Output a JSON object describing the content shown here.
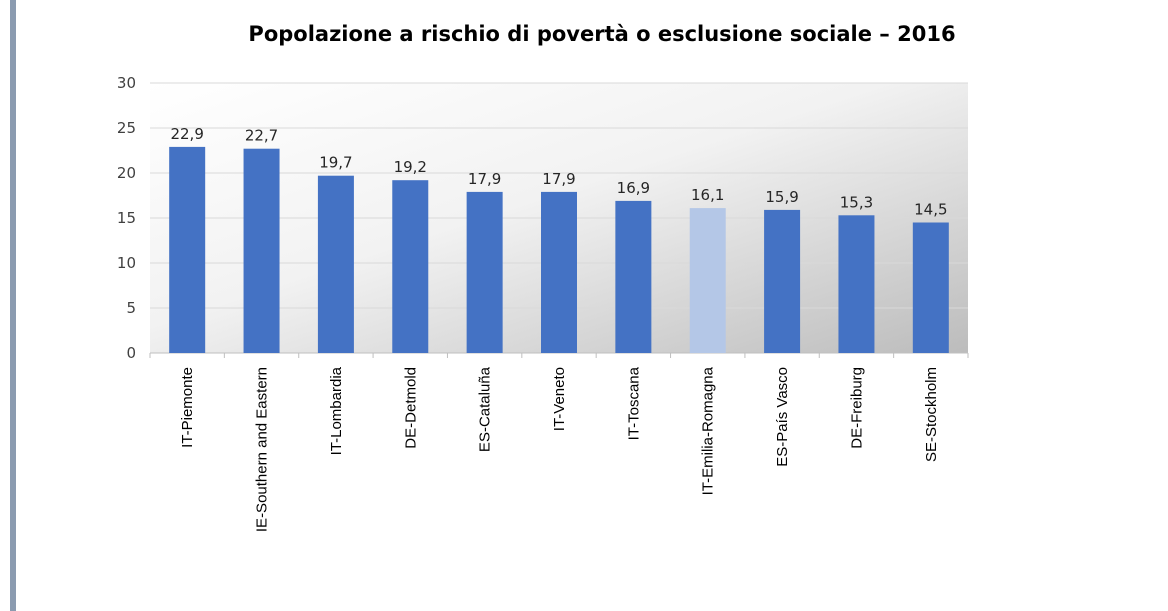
{
  "chart_data": {
    "type": "bar",
    "title": "Popolazione a rischio di povertà o esclusione sociale – 2016",
    "xlabel": "",
    "ylabel": "",
    "ylim": [
      0,
      30
    ],
    "yticks": [
      0,
      5,
      10,
      15,
      20,
      25,
      30
    ],
    "categories": [
      "IT-Piemonte",
      "IE-Southern and Eastern",
      "IT-Lombardia",
      "DE-Detmold",
      "ES-Cataluña",
      "IT-Veneto",
      "IT-Toscana",
      "IT-Emilia-Romagna",
      "ES-País Vasco",
      "DE-Freiburg",
      "SE-Stockholm"
    ],
    "values": [
      22.9,
      22.7,
      19.7,
      19.2,
      17.9,
      17.9,
      16.9,
      16.1,
      15.9,
      15.3,
      14.5
    ],
    "value_labels": [
      "22,9",
      "22,7",
      "19,7",
      "19,2",
      "17,9",
      "17,9",
      "16,9",
      "16,1",
      "15,9",
      "15,3",
      "14,5"
    ],
    "highlight_index": 7,
    "grid": true,
    "legend": "none",
    "colors": {
      "bar": "#4472c4",
      "highlight": "#b4c7e7",
      "grid": "#d9d9d9",
      "axis": "#bfbfbf"
    }
  }
}
